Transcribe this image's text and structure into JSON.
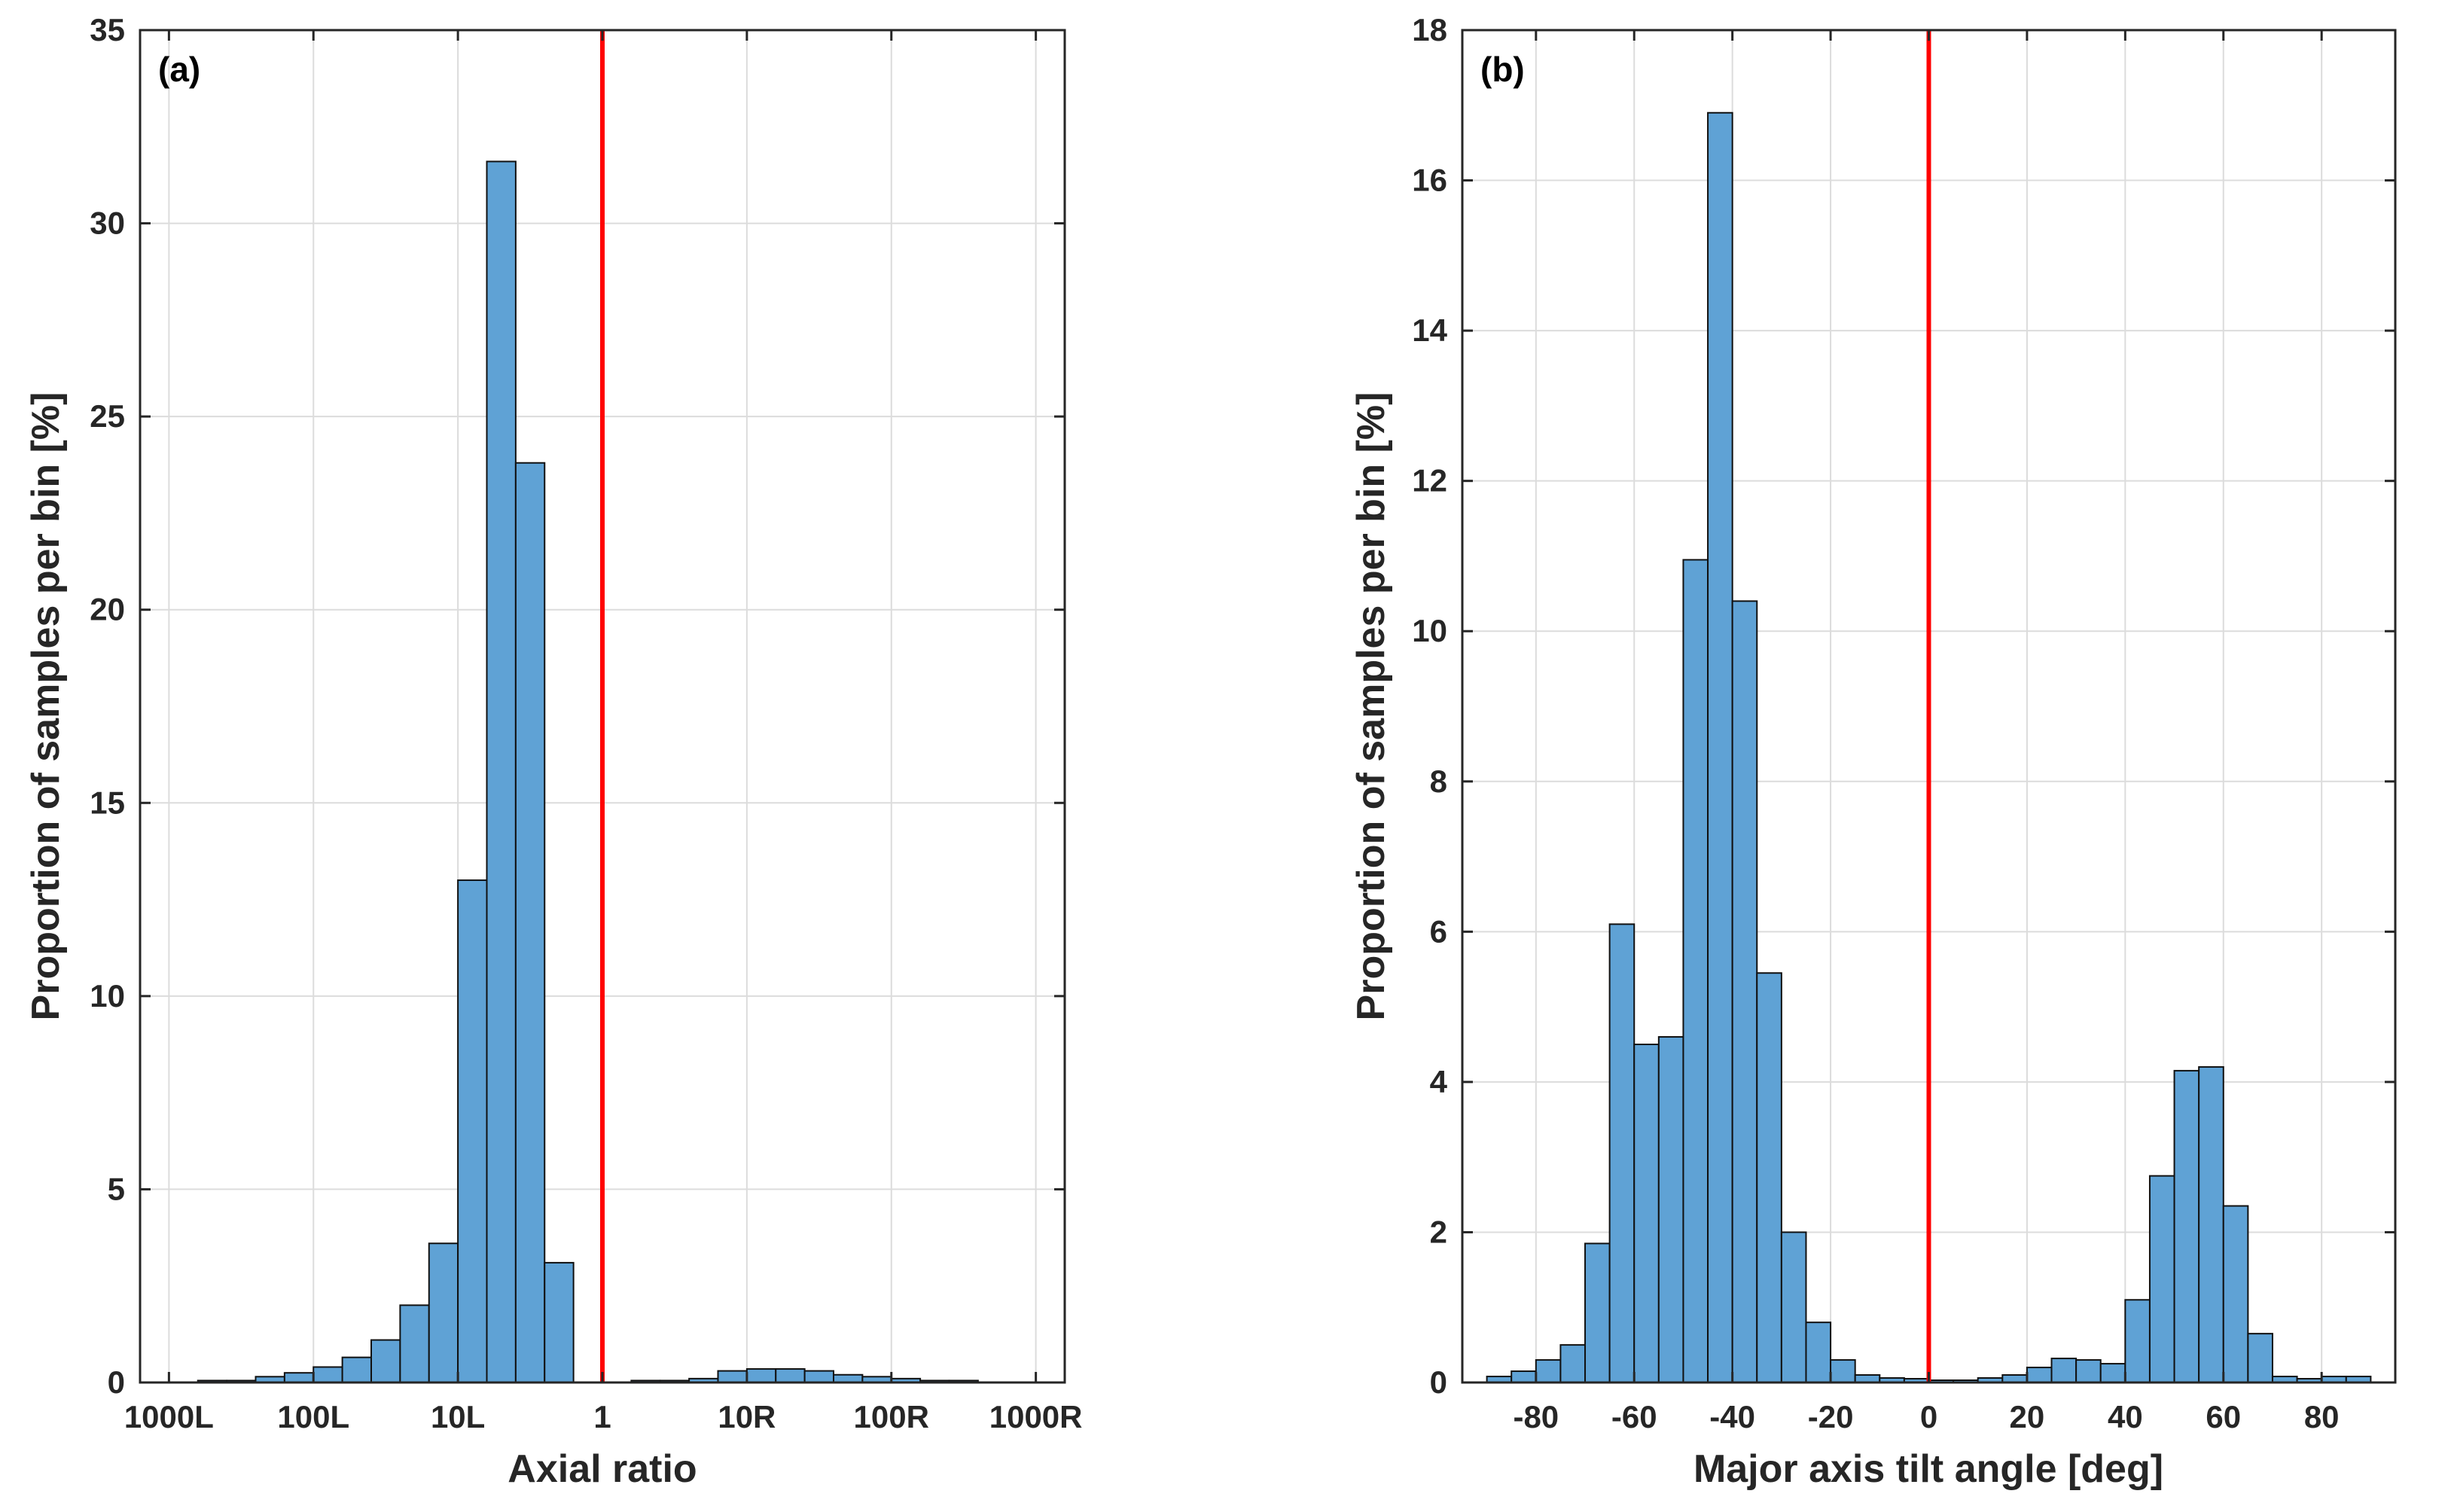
{
  "colors": {
    "bar": "#5fa2d5",
    "bar_edge": "#111111",
    "ref_line": "#ff0000",
    "grid": "#dcdcdc",
    "axis": "#262626"
  },
  "chart_data": [
    {
      "type": "bar",
      "panel_label": "(a)",
      "xlabel": "Axial ratio",
      "ylabel": "Proportion of samples per bin [%]",
      "ylim": [
        0,
        35
      ],
      "yticks": [
        0,
        5,
        10,
        15,
        20,
        25,
        30,
        35
      ],
      "xlim": [
        -3.2,
        3.2
      ],
      "xticks": [
        -3,
        -2,
        -1,
        0,
        1,
        2,
        3
      ],
      "xtick_labels": [
        "1000L",
        "100L",
        "10L",
        "1",
        "10R",
        "100R",
        "1000R"
      ],
      "ref_line_x": 0,
      "bin_width": 0.2,
      "bin_starts": [
        -2.8,
        -2.6,
        -2.4,
        -2.2,
        -2.0,
        -1.8,
        -1.6,
        -1.4,
        -1.2,
        -1.0,
        -0.8,
        -0.6,
        -0.4,
        -0.2,
        0.0,
        0.2,
        0.4,
        0.6,
        0.8,
        1.0,
        1.2,
        1.4,
        1.6,
        1.8,
        2.0,
        2.2,
        2.4
      ],
      "values": [
        0.05,
        0.05,
        0.15,
        0.25,
        0.4,
        0.65,
        1.1,
        2.0,
        3.6,
        13.0,
        31.6,
        23.8,
        3.1,
        0,
        0,
        0.05,
        0.05,
        0.1,
        0.3,
        0.35,
        0.35,
        0.3,
        0.2,
        0.15,
        0.1,
        0.05,
        0.05
      ]
    },
    {
      "type": "bar",
      "panel_label": "(b)",
      "xlabel": "Major axis tilt angle [deg]",
      "ylabel": "Proportion of samples per bin [%]",
      "ylim": [
        0,
        18
      ],
      "yticks": [
        0,
        2,
        4,
        6,
        8,
        10,
        12,
        14,
        16,
        18
      ],
      "xlim": [
        -95,
        95
      ],
      "xticks": [
        -80,
        -60,
        -40,
        -20,
        0,
        20,
        40,
        60,
        80
      ],
      "xtick_labels": [
        "-80",
        "-60",
        "-40",
        "-20",
        "0",
        "20",
        "40",
        "60",
        "80"
      ],
      "ref_line_x": 0,
      "bin_width": 5,
      "bin_starts": [
        -90,
        -85,
        -80,
        -75,
        -70,
        -65,
        -60,
        -55,
        -50,
        -45,
        -40,
        -35,
        -30,
        -25,
        -20,
        -15,
        -10,
        -5,
        0,
        5,
        10,
        15,
        20,
        25,
        30,
        35,
        40,
        45,
        50,
        55,
        60,
        65,
        70,
        75,
        80,
        85
      ],
      "values": [
        0.08,
        0.15,
        0.3,
        0.5,
        1.85,
        6.1,
        4.5,
        4.6,
        10.95,
        16.9,
        10.4,
        5.45,
        2.0,
        0.8,
        0.3,
        0.1,
        0.06,
        0.05,
        0.03,
        0.03,
        0.06,
        0.1,
        0.2,
        0.32,
        0.3,
        0.25,
        1.1,
        2.75,
        4.15,
        4.2,
        2.35,
        0.65,
        0.08,
        0.05,
        0.08,
        0.08
      ]
    }
  ]
}
